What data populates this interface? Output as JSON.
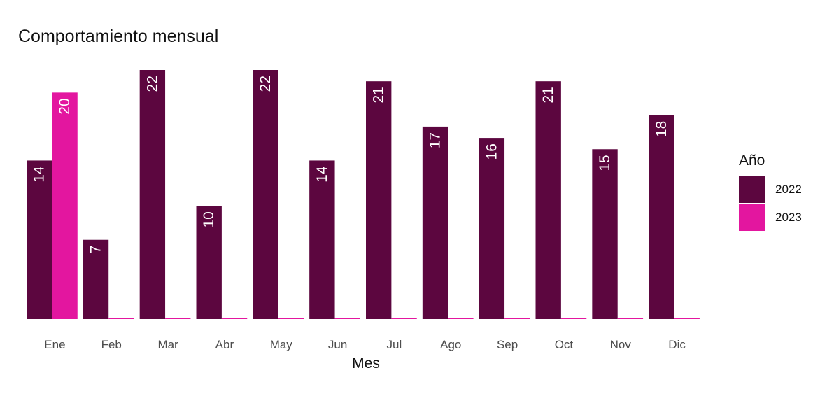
{
  "chart_data": {
    "type": "bar",
    "title": "Comportamiento mensual",
    "xlabel": "Mes",
    "ylabel": "",
    "categories": [
      "Ene",
      "Feb",
      "Mar",
      "Abr",
      "May",
      "Jun",
      "Jul",
      "Ago",
      "Sep",
      "Oct",
      "Nov",
      "Dic"
    ],
    "series": [
      {
        "name": "2022",
        "color": "#5c063f",
        "values": [
          14,
          7,
          22,
          10,
          22,
          14,
          21,
          17,
          16,
          21,
          15,
          18
        ]
      },
      {
        "name": "2023",
        "color": "#e3169f",
        "values": [
          20,
          0,
          0,
          0,
          0,
          0,
          0,
          0,
          0,
          0,
          0,
          0
        ]
      }
    ],
    "ylim": [
      0,
      22
    ],
    "grid": false,
    "legend": {
      "title": "Año",
      "placement": "right"
    },
    "bar_labels": "inside-top, rotated 90°"
  }
}
